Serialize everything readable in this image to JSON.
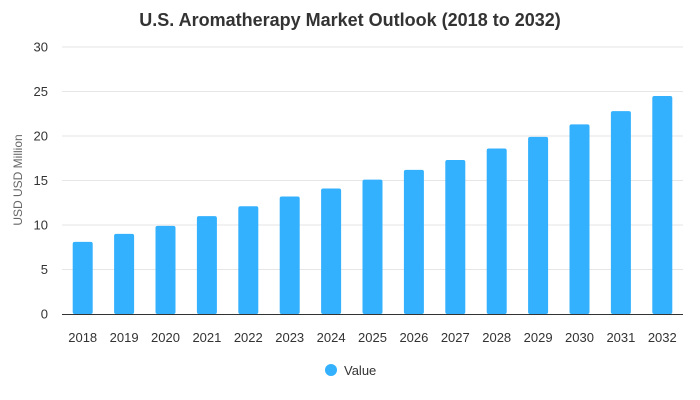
{
  "chart_data": {
    "type": "bar",
    "title": "U.S. Aromatherapy Market Outlook (2018 to 2032)",
    "xlabel": "",
    "ylabel": "USD USD Million",
    "ylim": [
      0,
      30
    ],
    "yticks": [
      0,
      5,
      10,
      15,
      20,
      25,
      30
    ],
    "categories": [
      "2018",
      "2019",
      "2020",
      "2021",
      "2022",
      "2023",
      "2024",
      "2025",
      "2026",
      "2027",
      "2028",
      "2029",
      "2030",
      "2031",
      "2032"
    ],
    "series": [
      {
        "name": "Value",
        "color": "#33b1ff",
        "values": [
          8.1,
          9.0,
          9.9,
          11.0,
          12.1,
          13.2,
          14.1,
          15.1,
          16.2,
          17.3,
          18.6,
          19.9,
          21.3,
          22.8,
          24.5
        ]
      }
    ],
    "grid": true,
    "legend": "bottom-center"
  }
}
